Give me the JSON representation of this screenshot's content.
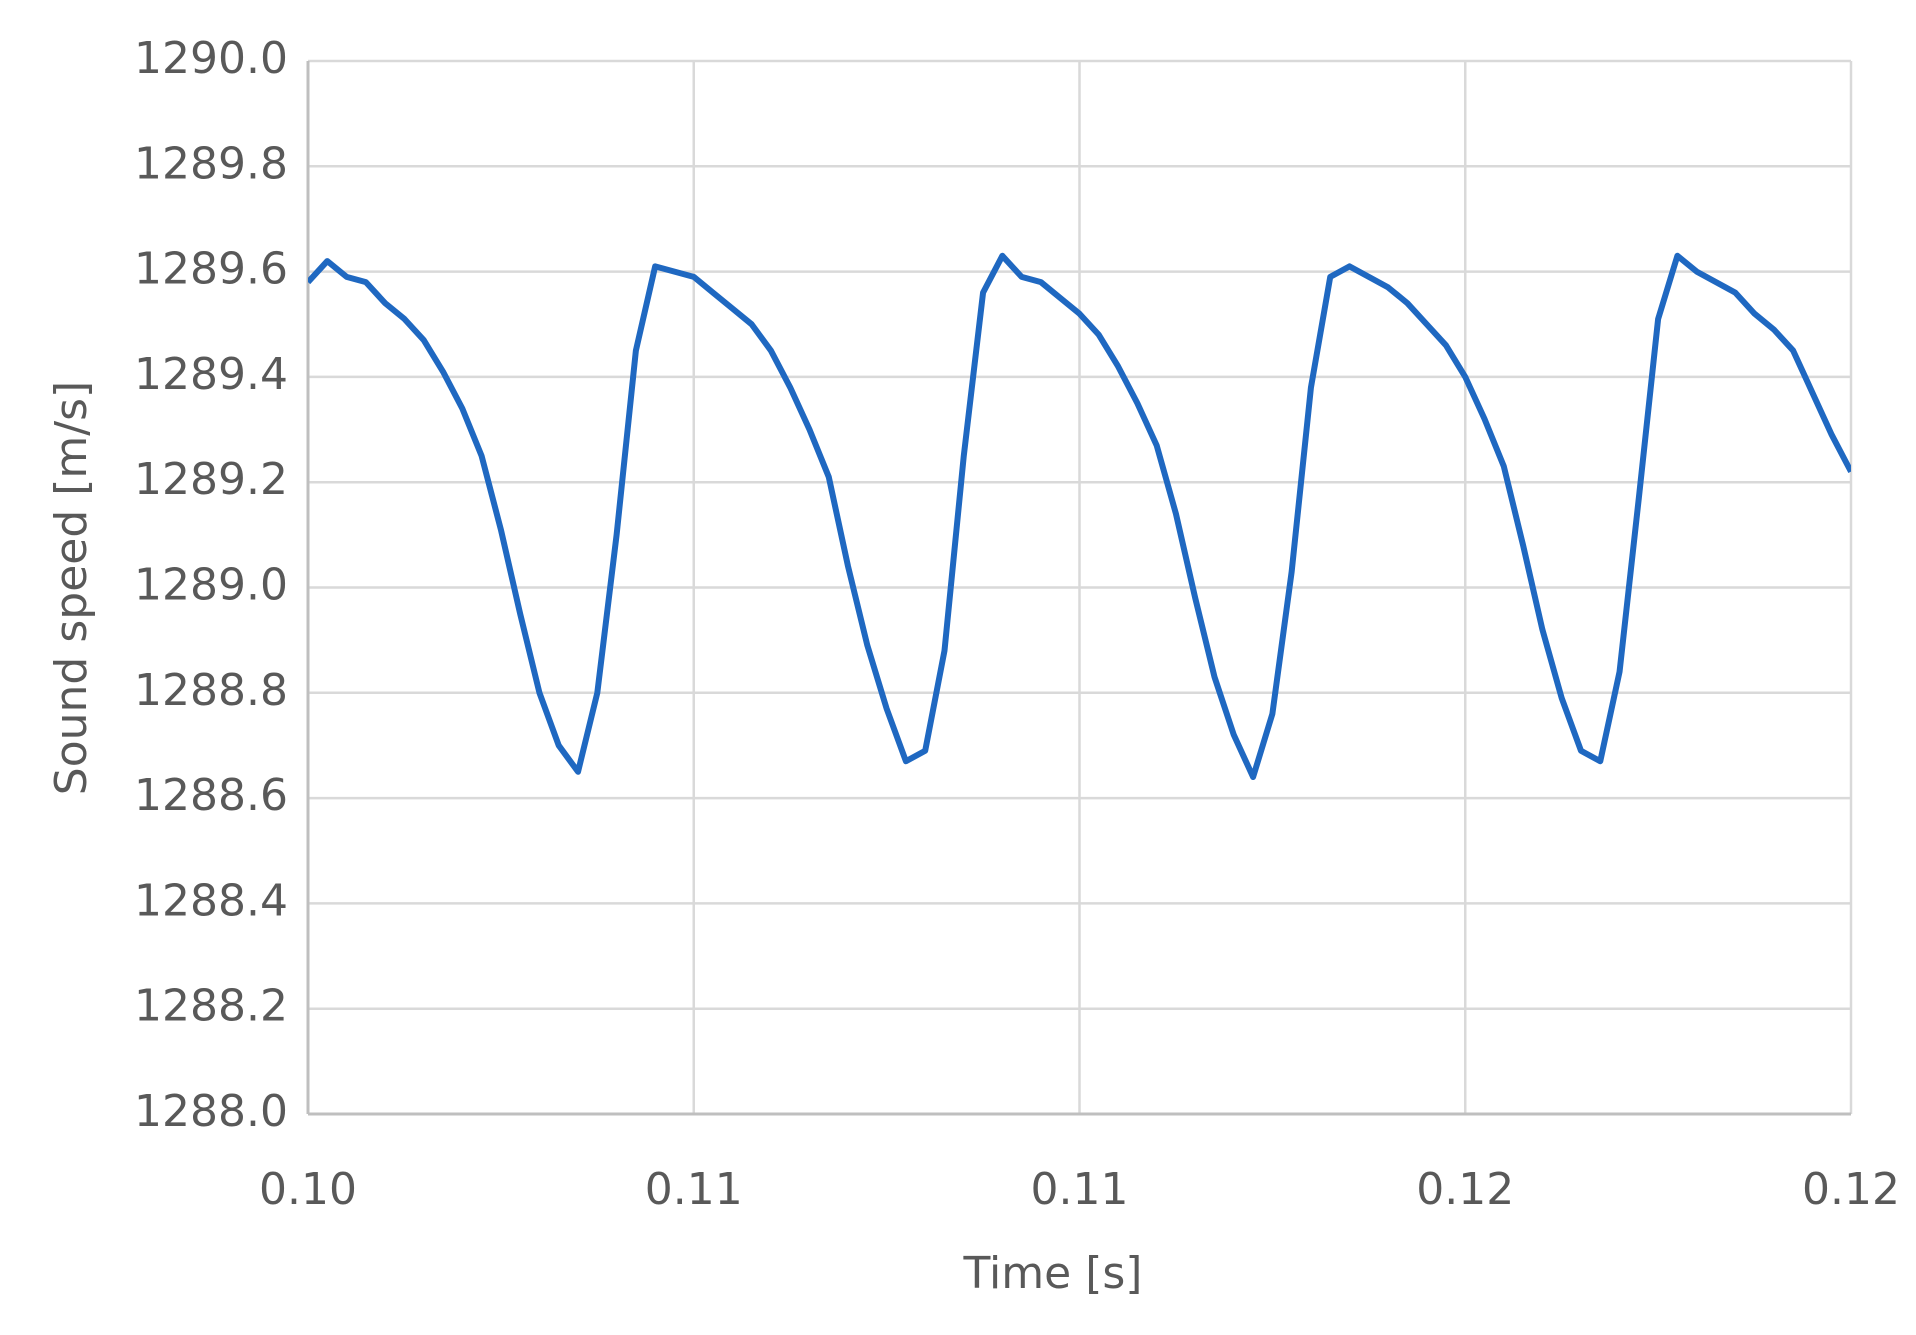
{
  "chart_data": {
    "type": "line",
    "x_label": "Time [s]",
    "y_label": "Sound speed [m/s]",
    "x": [
      0.1,
      0.10025,
      0.1005,
      0.10075,
      0.101,
      0.10125,
      0.1015,
      0.10175,
      0.102,
      0.10225,
      0.1025,
      0.10275,
      0.103,
      0.10325,
      0.1035,
      0.10375,
      0.104,
      0.10425,
      0.1045,
      0.10475,
      0.105,
      0.10525,
      0.1055,
      0.10575,
      0.106,
      0.10625,
      0.1065,
      0.10675,
      0.107,
      0.10725,
      0.1075,
      0.10775,
      0.108,
      0.10825,
      0.1085,
      0.10875,
      0.109,
      0.10925,
      0.1095,
      0.10975,
      0.11,
      0.11025,
      0.1105,
      0.11075,
      0.111,
      0.11125,
      0.1115,
      0.11175,
      0.112,
      0.11225,
      0.1125,
      0.11275,
      0.113,
      0.11325,
      0.1135,
      0.11375,
      0.114,
      0.11425,
      0.1145,
      0.11475,
      0.115,
      0.11525,
      0.1155,
      0.11575,
      0.116,
      0.11625,
      0.1165,
      0.11675,
      0.117,
      0.11725,
      0.1175,
      0.11775,
      0.118,
      0.11825,
      0.1185,
      0.11875,
      0.119,
      0.11925,
      0.1195,
      0.11975,
      0.12
    ],
    "series": [
      {
        "name": "Sound speed",
        "color": "#1f68c1",
        "values": [
          1289.58,
          1289.62,
          1289.59,
          1289.58,
          1289.54,
          1289.51,
          1289.47,
          1289.41,
          1289.34,
          1289.25,
          1289.11,
          1288.95,
          1288.8,
          1288.7,
          1288.65,
          1288.8,
          1289.1,
          1289.45,
          1289.61,
          1289.6,
          1289.59,
          1289.56,
          1289.53,
          1289.5,
          1289.45,
          1289.38,
          1289.3,
          1289.21,
          1289.04,
          1288.89,
          1288.77,
          1288.67,
          1288.69,
          1288.88,
          1289.25,
          1289.56,
          1289.63,
          1289.59,
          1289.58,
          1289.55,
          1289.52,
          1289.48,
          1289.42,
          1289.35,
          1289.27,
          1289.14,
          1288.98,
          1288.83,
          1288.72,
          1288.64,
          1288.76,
          1289.03,
          1289.38,
          1289.59,
          1289.61,
          1289.59,
          1289.57,
          1289.54,
          1289.5,
          1289.46,
          1289.4,
          1289.32,
          1289.23,
          1289.08,
          1288.92,
          1288.79,
          1288.69,
          1288.67,
          1288.84,
          1289.17,
          1289.51,
          1289.63,
          1289.6,
          1289.58,
          1289.56,
          1289.52,
          1289.49,
          1289.45,
          1289.37,
          1289.29,
          1289.22
        ]
      }
    ],
    "xlim": [
      0.1,
      0.12
    ],
    "xticks": [
      {
        "value": 0.1,
        "label": "0.10"
      },
      {
        "value": 0.105,
        "label": "0.11"
      },
      {
        "value": 0.11,
        "label": "0.11"
      },
      {
        "value": 0.115,
        "label": "0.12"
      },
      {
        "value": 0.12,
        "label": "0.12"
      }
    ],
    "ylim": [
      1288,
      1290
    ],
    "yticks": [
      {
        "value": 1288,
        "label": "1288.0"
      },
      1288.2,
      1288.4,
      1288.6,
      1288.8,
      {
        "value": 1289,
        "label": "1289.0"
      },
      1289.2,
      1289.4,
      1289.6,
      1289.8,
      {
        "value": 1290,
        "label": "1290.0"
      }
    ],
    "grid": true
  }
}
